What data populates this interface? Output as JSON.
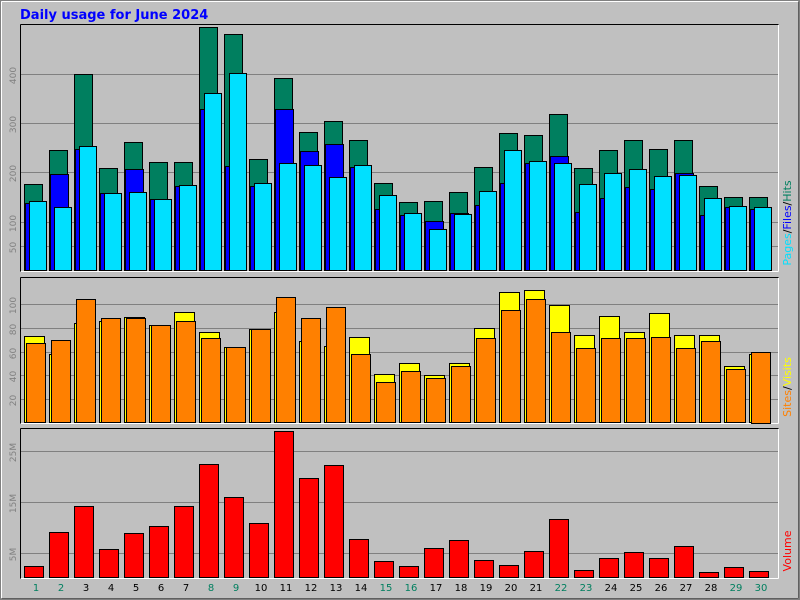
{
  "title": "Daily usage for June 2024",
  "colors": {
    "page_bg": "#c0c0c0",
    "plot_bg": "#c0c0c0",
    "title": "#0000ff",
    "hits": "#007f5f",
    "files": "#0000ff",
    "pages": "#00e0ff",
    "visits": "#ffff00",
    "sites": "#ff8000",
    "volume": "#ff0000",
    "grid": "#808080",
    "weekday_label": "#000000",
    "weekend_label": "#007f5f"
  },
  "chart_data": [
    {
      "type": "bar",
      "panel": "hits-files-pages",
      "legend": [
        {
          "name": "Pages",
          "color": "#00e0ff"
        },
        {
          "name": "Files",
          "color": "#0000ff"
        },
        {
          "name": "Hits",
          "color": "#007f5f"
        }
      ],
      "legend_separator": "/",
      "ylim": [
        0,
        495
      ],
      "yticks": [
        50,
        100,
        200,
        300,
        400
      ],
      "grid": true,
      "categories": [
        "1",
        "2",
        "3",
        "4",
        "5",
        "6",
        "7",
        "8",
        "9",
        "10",
        "11",
        "12",
        "13",
        "14",
        "15",
        "16",
        "17",
        "18",
        "19",
        "20",
        "21",
        "22",
        "23",
        "24",
        "25",
        "26",
        "27",
        "28",
        "29",
        "30"
      ],
      "series": [
        {
          "name": "Hits",
          "values": [
            177,
            245,
            400,
            208,
            262,
            222,
            222,
            495,
            480,
            228,
            392,
            283,
            304,
            266,
            178,
            140,
            141,
            161,
            210,
            280,
            276,
            318,
            208,
            245,
            266,
            248,
            266,
            172,
            150,
            150
          ]
        },
        {
          "name": "Files",
          "values": [
            138,
            196,
            248,
            158,
            206,
            146,
            172,
            328,
            213,
            172,
            328,
            244,
            257,
            210,
            125,
            114,
            102,
            118,
            133,
            178,
            220,
            233,
            119,
            149,
            170,
            167,
            199,
            114,
            130,
            126
          ]
        },
        {
          "name": "Pages",
          "values": [
            141,
            130,
            253,
            158,
            160,
            147,
            174,
            362,
            401,
            178,
            219,
            215,
            191,
            216,
            155,
            117,
            85,
            115,
            163,
            246,
            224,
            220,
            176,
            198,
            206,
            192,
            194,
            148,
            132,
            130
          ]
        }
      ]
    },
    {
      "type": "bar",
      "panel": "visits-sites",
      "legend": [
        {
          "name": "Sites",
          "color": "#ff8000"
        },
        {
          "name": "Visits",
          "color": "#ffff00"
        }
      ],
      "legend_separator": "/",
      "ylim": [
        0,
        120
      ],
      "yticks": [
        20,
        40,
        60,
        80,
        100
      ],
      "grid": true,
      "categories": [
        "1",
        "2",
        "3",
        "4",
        "5",
        "6",
        "7",
        "8",
        "9",
        "10",
        "11",
        "12",
        "13",
        "14",
        "15",
        "16",
        "17",
        "18",
        "19",
        "20",
        "21",
        "22",
        "23",
        "24",
        "25",
        "26",
        "27",
        "28",
        "29",
        "30"
      ],
      "series": [
        {
          "name": "Visits",
          "values": [
            73,
            58,
            84,
            86,
            89,
            82,
            93,
            76,
            64,
            79,
            93,
            69,
            65,
            72,
            41,
            50,
            40,
            50,
            80,
            110,
            112,
            99,
            74,
            90,
            76,
            92,
            74,
            74,
            48,
            58
          ]
        },
        {
          "name": "Sites",
          "values": [
            67,
            70,
            104,
            88,
            88,
            82,
            86,
            71,
            64,
            79,
            106,
            88,
            97,
            58,
            34,
            44,
            38,
            48,
            71,
            95,
            104,
            76,
            63,
            71,
            71,
            72,
            63,
            69,
            45,
            60
          ]
        }
      ]
    },
    {
      "type": "bar",
      "panel": "volume",
      "legend": [
        {
          "name": "Volume",
          "color": "#ff0000"
        }
      ],
      "ylim": [
        0,
        29
      ],
      "ytick_labels": [
        "5M",
        "15M",
        "25M"
      ],
      "yticks": [
        5,
        15,
        25
      ],
      "grid": true,
      "categories": [
        "1",
        "2",
        "3",
        "4",
        "5",
        "6",
        "7",
        "8",
        "9",
        "10",
        "11",
        "12",
        "13",
        "14",
        "15",
        "16",
        "17",
        "18",
        "19",
        "20",
        "21",
        "22",
        "23",
        "24",
        "25",
        "26",
        "27",
        "28",
        "29",
        "30"
      ],
      "weekend_days": [
        "1",
        "2",
        "8",
        "9",
        "15",
        "16",
        "22",
        "23",
        "29",
        "30"
      ],
      "series": [
        {
          "name": "Volume",
          "values": [
            2.3,
            9.1,
            14.3,
            5.8,
            8.9,
            10.3,
            14.2,
            22.5,
            15.9,
            10.9,
            29.0,
            19.7,
            22.3,
            7.6,
            3.3,
            2.3,
            6.0,
            7.4,
            3.5,
            2.6,
            5.3,
            11.7,
            1.6,
            3.9,
            5.1,
            3.9,
            6.4,
            1.2,
            2.2,
            1.4
          ]
        }
      ]
    }
  ]
}
